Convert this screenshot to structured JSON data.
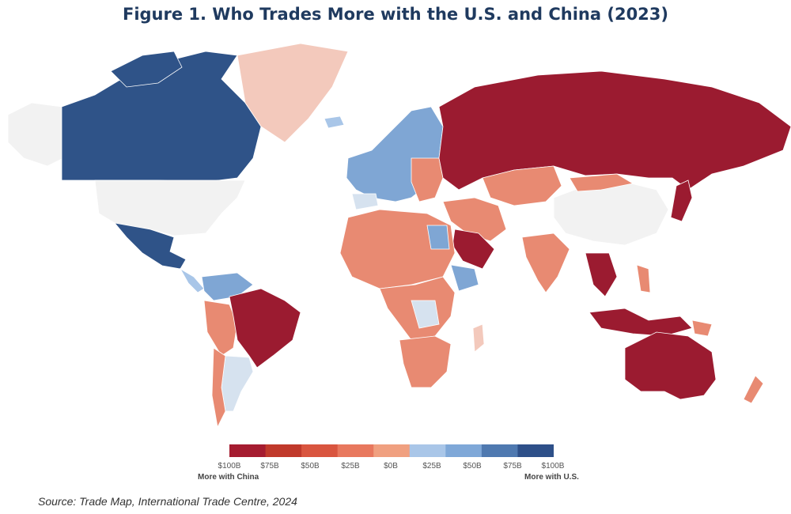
{
  "title": "Figure 1. Who Trades More with the U.S. and China (2023)",
  "source": "Source: Trade Map, International Trade Centre, 2024",
  "legend": {
    "ticks": [
      "$100B",
      "$75B",
      "$50B",
      "$25B",
      "$0B",
      "$25B",
      "$50B",
      "$75B",
      "$100B"
    ],
    "left_label": "More with China",
    "right_label": "More with U.S.",
    "colors": [
      "#a51c30",
      "#c0392b",
      "#d9553f",
      "#e8785e",
      "#f0a080",
      "#a9c6e8",
      "#7fa8d8",
      "#4f79b0",
      "#2e5089"
    ]
  },
  "colors": {
    "china_strong": "#9b1b30",
    "china_medium": "#d65a45",
    "china_light": "#e88a72",
    "china_pale": "#f3c9bc",
    "neutral": "#f2f2f2",
    "us_pale": "#d6e2ef",
    "us_light": "#a9c6e8",
    "us_medium": "#7fa6d4",
    "us_strong": "#2f5388"
  },
  "regions": [
    {
      "name": "canada",
      "shade": "us_strong"
    },
    {
      "name": "united-states",
      "shade": "neutral"
    },
    {
      "name": "alaska",
      "shade": "neutral"
    },
    {
      "name": "mexico",
      "shade": "us_strong"
    },
    {
      "name": "greenland",
      "shade": "china_pale"
    },
    {
      "name": "brazil",
      "shade": "china_strong"
    },
    {
      "name": "argentina",
      "shade": "us_pale"
    },
    {
      "name": "russia",
      "shade": "china_strong"
    },
    {
      "name": "china",
      "shade": "neutral"
    },
    {
      "name": "australia",
      "shade": "china_strong"
    },
    {
      "name": "europe",
      "shade": "us_medium"
    },
    {
      "name": "africa",
      "shade": "china_light"
    },
    {
      "name": "india",
      "shade": "china_light"
    },
    {
      "name": "saudi-arabia",
      "shade": "china_strong"
    }
  ]
}
